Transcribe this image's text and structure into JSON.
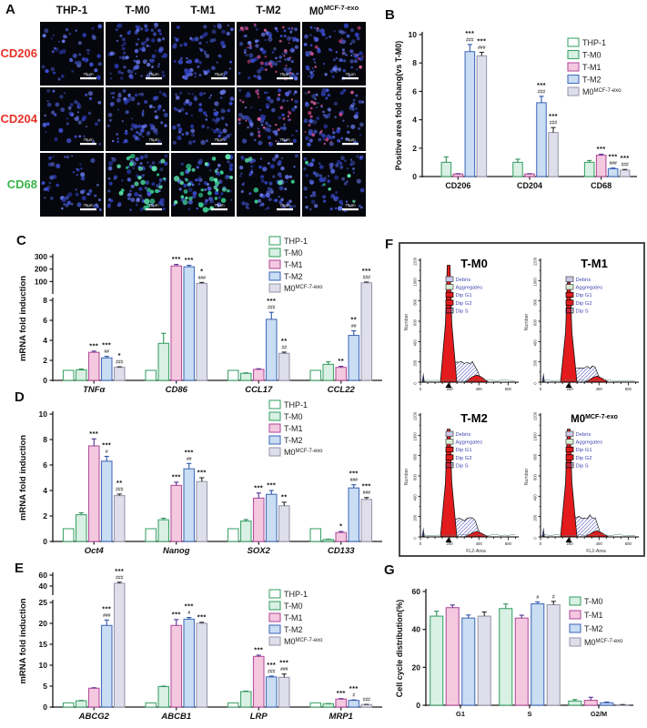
{
  "groups": [
    {
      "id": "THP-1",
      "label": {
        "base": "THP-1"
      },
      "fill": "#ffffff",
      "stroke": "#41a56b",
      "err": "#2e8f59"
    },
    {
      "id": "T-M0",
      "label": {
        "base": "T-M0"
      },
      "fill": "#d9f0e4",
      "stroke": "#41a56b",
      "err": "#2e8f59"
    },
    {
      "id": "T-M1",
      "label": {
        "base": "T-M1"
      },
      "fill": "#f4c9df",
      "stroke": "#b5519e",
      "err": "#55308f"
    },
    {
      "id": "T-M2",
      "label": {
        "base": "T-M2"
      },
      "fill": "#c9ddf3",
      "stroke": "#4a6fbd",
      "err": "#2d55a6"
    },
    {
      "id": "M0exo",
      "label": {
        "base": "M0",
        "sup": "MCF-7-exo"
      },
      "fill": "#dfdfec",
      "stroke": "#9a9aae",
      "err": "#2a2a2a"
    }
  ],
  "panels": {
    "a": {
      "letter": "A",
      "columns": [
        {
          "base": "THP-1"
        },
        {
          "base": "T-M0"
        },
        {
          "base": "T-M1"
        },
        {
          "base": "T-M2"
        },
        {
          "base": "M0",
          "sup": "MCF-7-exo"
        }
      ],
      "rows": [
        {
          "label": "CD206",
          "color": "#e63228"
        },
        {
          "label": "CD204",
          "color": "#e63228"
        },
        {
          "label": "CD68",
          "color": "#3bb54a"
        }
      ],
      "scale_label": "75μm",
      "tiles": [
        [
          {
            "d": 52
          },
          {
            "d": 88
          },
          {
            "d": 70
          },
          {
            "d": 78,
            "extra": "red",
            "n": 26
          },
          {
            "d": 82,
            "extra": "red",
            "n": 12
          }
        ],
        [
          {
            "d": 48
          },
          {
            "d": 82
          },
          {
            "d": 76
          },
          {
            "d": 72,
            "extra": "red",
            "n": 24
          },
          {
            "d": 76,
            "extra": "red",
            "n": 18
          }
        ],
        [
          {
            "d": 54
          },
          {
            "d": 80,
            "extra": "green",
            "n": 24
          },
          {
            "d": 62,
            "extra": "green",
            "n": 38
          },
          {
            "d": 76,
            "extra": "green",
            "n": 6
          },
          {
            "d": 74,
            "extra": "green",
            "n": 5
          }
        ]
      ]
    },
    "b": {
      "letter": "B"
    },
    "c": {
      "letter": "C"
    },
    "d": {
      "letter": "D"
    },
    "e": {
      "letter": "E"
    },
    "f": {
      "letter": "F",
      "ylabel": "Number",
      "xlabel": "FL2-Area",
      "legend": [
        {
          "label": "Debris",
          "fill": "#c9c9e8",
          "stroke": "#444444"
        },
        {
          "label": "Aggregates",
          "fill": "#d8edd3",
          "stroke": "#444444"
        },
        {
          "label": "Dip G1",
          "fill": "#e31b1c",
          "stroke": "#000000"
        },
        {
          "label": "Dip G2",
          "fill": "#e31b1c",
          "stroke": "#000000"
        },
        {
          "label": "Dip S",
          "fill": "hatch",
          "stroke": "#000000"
        }
      ],
      "legend_text_color": "#4646b4",
      "subplots": [
        {
          "title": {
            "base": "T-M0"
          },
          "ymax": 1200,
          "yticks": [
            0,
            200,
            400,
            600,
            800,
            1000,
            1200
          ],
          "xticks": [
            0,
            200,
            400,
            600
          ],
          "xmax": 660,
          "g1_peak": 1150,
          "s_height": 195,
          "g2_peak": 70,
          "show_xlabel": false
        },
        {
          "title": {
            "base": "T-M1"
          },
          "ymax": 1200,
          "yticks": [
            0,
            200,
            400,
            600,
            800,
            1000,
            1200
          ],
          "xticks": [
            0,
            200,
            400,
            600
          ],
          "xmax": 660,
          "g1_peak": 980,
          "s_height": 150,
          "g2_peak": 60,
          "show_xlabel": false
        },
        {
          "title": {
            "base": "T-M2"
          },
          "ymax": 1200,
          "yticks": [
            0,
            200,
            400,
            600,
            800,
            1000,
            1200
          ],
          "xticks": [
            0,
            200,
            400,
            600
          ],
          "xmax": 660,
          "g1_peak": 1060,
          "s_height": 170,
          "g2_peak": 55,
          "show_xlabel": true
        },
        {
          "title": {
            "base": "M0",
            "sup": "MCF-7-exo"
          },
          "ymax": 1200,
          "yticks": [
            0,
            200,
            400,
            600,
            800,
            1000,
            1200
          ],
          "xticks": [
            0,
            200,
            400,
            600
          ],
          "xmax": 660,
          "g1_peak": 1060,
          "s_height": 200,
          "g2_peak": 60,
          "show_xlabel": true
        }
      ]
    },
    "g": {
      "letter": "G"
    }
  },
  "chart_data": [
    {
      "panel": "B",
      "type": "bar",
      "ylabel": "Positive area fold chang(vs T-M0)",
      "segments": [
        {
          "v0": 0,
          "v1": 10,
          "ticks": [
            0,
            2,
            4,
            6,
            8,
            10
          ]
        }
      ],
      "categories": [
        "CD206",
        "CD204",
        "CD68"
      ],
      "italic_categories": false,
      "legend": [
        "THP-1",
        "T-M0",
        "T-M1",
        "T-M2",
        "M0exo"
      ],
      "series": [
        {
          "group": "THP-1",
          "values": [
            0,
            0,
            0
          ],
          "errs": [
            0,
            0,
            0
          ],
          "ann": [
            "",
            "",
            ""
          ]
        },
        {
          "group": "T-M0",
          "values": [
            1.0,
            1.0,
            1.0
          ],
          "errs": [
            0.38,
            0.22,
            0.13
          ],
          "ann": [
            "",
            "",
            ""
          ]
        },
        {
          "group": "T-M1",
          "values": [
            0.18,
            0.18,
            1.5
          ],
          "errs": [
            0.02,
            0.02,
            0.07
          ],
          "ann": [
            "",
            "",
            "***"
          ]
        },
        {
          "group": "T-M2",
          "values": [
            8.8,
            5.2,
            0.55
          ],
          "errs": [
            0.5,
            0.45,
            0.05
          ],
          "ann": [
            "***|###",
            "***|###",
            "***|###"
          ]
        },
        {
          "group": "M0exo",
          "values": [
            8.5,
            3.1,
            0.45
          ],
          "errs": [
            0.25,
            0.35,
            0.05
          ],
          "ann": [
            "***|###",
            "***|###",
            "***|###"
          ]
        }
      ]
    },
    {
      "panel": "C",
      "type": "bar",
      "ylabel": "mRNA fold induction",
      "segments": [
        {
          "v0": 0,
          "v1": 8,
          "ticks": [
            0,
            2,
            4,
            6,
            8
          ]
        },
        {
          "v0": 8,
          "v1": 300,
          "ticks": [
            100,
            200,
            300
          ]
        }
      ],
      "categories": [
        "TNFα",
        "CD86",
        "CCL17",
        "CCL22"
      ],
      "italic_categories": true,
      "legend": [
        "THP-1",
        "T-M0",
        "T-M1",
        "T-M2",
        "M0exo"
      ],
      "series": [
        {
          "group": "THP-1",
          "values": [
            1,
            1,
            1,
            1
          ],
          "errs": [
            0,
            0,
            0,
            0
          ],
          "ann": [
            "",
            "",
            "",
            ""
          ]
        },
        {
          "group": "T-M0",
          "values": [
            1.05,
            3.7,
            0.7,
            1.6
          ],
          "errs": [
            0.08,
            1.0,
            0.05,
            0.25
          ],
          "ann": [
            "",
            "",
            "",
            ""
          ]
        },
        {
          "group": "T-M1",
          "values": [
            2.8,
            225,
            1.1,
            1.3
          ],
          "errs": [
            0.12,
            12,
            0.06,
            0.1
          ],
          "ann": [
            "***",
            "***",
            "",
            "**"
          ]
        },
        {
          "group": "T-M2",
          "values": [
            2.25,
            218,
            6.1,
            4.5
          ],
          "errs": [
            0.15,
            12,
            0.7,
            0.45
          ],
          "ann": [
            "***|##",
            "***",
            "***|###",
            "**|##"
          ]
        },
        {
          "group": "M0exo",
          "values": [
            1.3,
            85,
            2.7,
            90
          ],
          "errs": [
            0.06,
            8,
            0.12,
            6
          ],
          "ann": [
            "*|###",
            "*|###",
            "**|##",
            "***|###"
          ]
        }
      ]
    },
    {
      "panel": "D",
      "type": "bar",
      "ylabel": "mRNA fold induction",
      "segments": [
        {
          "v0": 0,
          "v1": 10,
          "ticks": [
            0,
            2,
            4,
            6,
            8,
            10
          ]
        }
      ],
      "categories": [
        "Oct4",
        "Nanog",
        "SOX2",
        "CD133"
      ],
      "italic_categories": true,
      "legend": [
        "THP-1",
        "T-M0",
        "T-M1",
        "T-M2",
        "M0exo"
      ],
      "series": [
        {
          "group": "THP-1",
          "values": [
            1,
            1,
            1,
            1
          ],
          "errs": [
            0,
            0,
            0,
            0
          ],
          "ann": [
            "",
            "",
            "",
            ""
          ]
        },
        {
          "group": "T-M0",
          "values": [
            2.1,
            1.7,
            1.6,
            0.15
          ],
          "errs": [
            0.15,
            0.12,
            0.12,
            0.03
          ],
          "ann": [
            "",
            "",
            "",
            ""
          ]
        },
        {
          "group": "T-M1",
          "values": [
            7.5,
            4.4,
            3.4,
            0.7
          ],
          "errs": [
            0.55,
            0.25,
            0.4,
            0.08
          ],
          "ann": [
            "***",
            "***",
            "***",
            "*"
          ]
        },
        {
          "group": "T-M2",
          "values": [
            6.3,
            5.7,
            3.7,
            4.2
          ],
          "errs": [
            0.38,
            0.42,
            0.3,
            0.25
          ],
          "ann": [
            "***|#",
            "***|##",
            "***",
            "***|###"
          ]
        },
        {
          "group": "M0exo",
          "values": [
            3.6,
            4.7,
            2.8,
            3.3
          ],
          "errs": [
            0.12,
            0.3,
            0.28,
            0.15
          ],
          "ann": [
            "**|###",
            "***",
            "**",
            "***|###"
          ]
        }
      ]
    },
    {
      "panel": "E",
      "type": "bar",
      "ylabel": "mRNA fold induction",
      "segments": [
        {
          "v0": 0,
          "v1": 25,
          "ticks": [
            0,
            5,
            10,
            15,
            20,
            25
          ]
        },
        {
          "v0": 25,
          "v1": 60,
          "ticks": [
            40,
            60
          ]
        }
      ],
      "categories": [
        "ABCG2",
        "ABCB1",
        "LRP",
        "MRP1"
      ],
      "italic_categories": true,
      "legend": [
        "THP-1",
        "T-M0",
        "T-M1",
        "T-M2",
        "M0exo"
      ],
      "series": [
        {
          "group": "THP-1",
          "values": [
            1,
            1,
            1,
            1
          ],
          "errs": [
            0,
            0,
            0,
            0
          ],
          "ann": [
            "",
            "",
            "",
            ""
          ]
        },
        {
          "group": "T-M0",
          "values": [
            1.5,
            4.9,
            3.7,
            0.8
          ],
          "errs": [
            0.08,
            0.1,
            0.12,
            0.05
          ],
          "ann": [
            "",
            "",
            "",
            ""
          ]
        },
        {
          "group": "T-M1",
          "values": [
            4.5,
            19.5,
            12.1,
            1.9
          ],
          "errs": [
            0.12,
            1.4,
            0.3,
            0.12
          ],
          "ann": [
            "",
            "***",
            "***",
            "***"
          ]
        },
        {
          "group": "T-M2",
          "values": [
            19.5,
            21,
            7.2,
            1.6
          ],
          "errs": [
            1.3,
            0.4,
            0.2,
            0.12
          ],
          "ann": [
            "***|###",
            "***|#",
            "***|###",
            "***|#"
          ]
        },
        {
          "group": "M0exo",
          "values": [
            45,
            20,
            7.1,
            0.6
          ],
          "errs": [
            2,
            0.25,
            0.8,
            0.04
          ],
          "ann": [
            "***|###",
            "***",
            "***|###",
            "|###"
          ]
        }
      ]
    },
    {
      "panel": "G",
      "type": "bar",
      "ylabel": "Cell cycle distribution(%)",
      "segments": [
        {
          "v0": 0,
          "v1": 60,
          "ticks": [
            0,
            20,
            40,
            60
          ]
        }
      ],
      "categories": [
        "G1",
        "S",
        "G2/M"
      ],
      "italic_categories": false,
      "legend": [
        "T-M0",
        "T-M1",
        "T-M2",
        "M0exo"
      ],
      "series": [
        {
          "group": "T-M0",
          "values": [
            47,
            51,
            2.2
          ],
          "errs": [
            2.6,
            2.4,
            0.8
          ],
          "ann": [
            "",
            "",
            ""
          ]
        },
        {
          "group": "T-M1",
          "values": [
            51.5,
            46,
            2.6
          ],
          "errs": [
            1.4,
            1.5,
            1.6
          ],
          "ann": [
            "",
            "",
            ""
          ]
        },
        {
          "group": "T-M2",
          "values": [
            46,
            53.5,
            1.3
          ],
          "errs": [
            1.6,
            1.0,
            0.4
          ],
          "ann": [
            "",
            "|#",
            ""
          ]
        },
        {
          "group": "M0exo",
          "values": [
            47,
            53,
            0.25
          ],
          "errs": [
            2.2,
            1.8,
            0.1
          ],
          "ann": [
            "",
            "|#",
            ""
          ]
        }
      ]
    }
  ]
}
